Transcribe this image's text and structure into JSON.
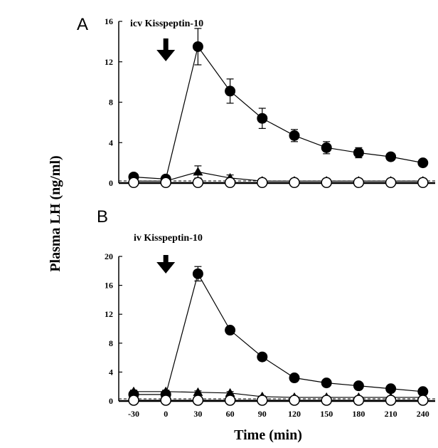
{
  "figure": {
    "ylabel": "Plasma LH (ng/ml)",
    "xlabel": "Time (min)"
  },
  "chart_data": [
    {
      "type": "line",
      "panel": "A",
      "annotation": "icv Kisspeptin-10",
      "injection_time": 0,
      "x": [
        -30,
        0,
        30,
        60,
        90,
        120,
        150,
        180,
        210,
        240
      ],
      "xticks": [],
      "yticks": [
        0,
        4,
        8,
        12,
        16
      ],
      "ylim": [
        0,
        16
      ],
      "xlim": [
        -30,
        240
      ],
      "series": [
        {
          "marker": "filled-circle",
          "color": "#000000",
          "values": [
            0.6,
            0.4,
            13.5,
            9.1,
            6.4,
            4.7,
            3.5,
            3.0,
            2.6,
            2.0
          ],
          "errors": [
            0.1,
            0.1,
            1.8,
            1.2,
            1.0,
            0.6,
            0.6,
            0.5,
            0.3,
            0.2
          ]
        },
        {
          "marker": "filled-triangle",
          "color": "#000000",
          "values": [
            0.2,
            0.2,
            1.1,
            0.5,
            0.2,
            0.2,
            0.2,
            0.2,
            0.2,
            0.2
          ],
          "errors": [
            0.1,
            0.1,
            0.6,
            0.3,
            0.1,
            0.1,
            0.1,
            0.1,
            0.1,
            0.1
          ]
        },
        {
          "marker": "open-circle",
          "color": "#000000",
          "values": [
            0.05,
            0.05,
            0.05,
            0.05,
            0.05,
            0.05,
            0.05,
            0.05,
            0.05,
            0.05
          ],
          "errors": [
            0,
            0,
            0,
            0,
            0,
            0,
            0,
            0,
            0,
            0
          ]
        }
      ]
    },
    {
      "type": "line",
      "panel": "B",
      "annotation": "iv Kisspeptin-10",
      "injection_time": 0,
      "x": [
        -30,
        0,
        30,
        60,
        90,
        120,
        150,
        180,
        210,
        240
      ],
      "xticks": [
        "-30",
        "0",
        "30",
        "60",
        "90",
        "120",
        "150",
        "180",
        "210",
        "240"
      ],
      "yticks": [
        0,
        4,
        8,
        12,
        16,
        20
      ],
      "ylim": [
        0,
        20
      ],
      "xlim": [
        -30,
        240
      ],
      "series": [
        {
          "marker": "filled-circle",
          "color": "#000000",
          "values": [
            0.9,
            0.9,
            17.6,
            9.8,
            6.1,
            3.2,
            2.5,
            2.1,
            1.7,
            1.3
          ],
          "errors": [
            0.2,
            0.2,
            1.0,
            0.4,
            0.3,
            0.3,
            0.2,
            0.2,
            0.2,
            0.2
          ]
        },
        {
          "marker": "filled-triangle",
          "color": "#000000",
          "values": [
            1.3,
            1.3,
            1.2,
            1.1,
            0.6,
            0.5,
            0.5,
            0.5,
            0.5,
            0.5
          ],
          "errors": [
            0.2,
            0.2,
            0.2,
            0.2,
            0.1,
            0.1,
            0.1,
            0.1,
            0.1,
            0.1
          ]
        },
        {
          "marker": "open-circle",
          "color": "#000000",
          "values": [
            0.1,
            0.1,
            0.1,
            0.1,
            0.1,
            0.1,
            0.1,
            0.1,
            0.1,
            0.1
          ],
          "errors": [
            0,
            0,
            0,
            0,
            0,
            0,
            0,
            0,
            0,
            0
          ]
        }
      ]
    }
  ]
}
